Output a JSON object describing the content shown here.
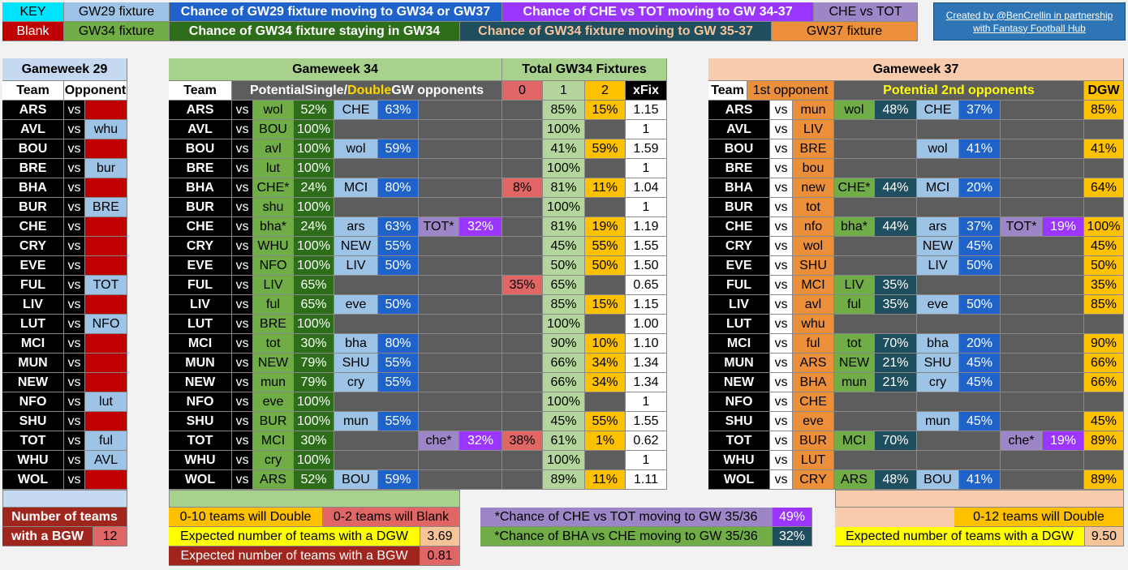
{
  "key": {
    "k1": "KEY",
    "k2": "GW29 fixture",
    "k3": "Chance of GW29 fixture moving to GW34 or GW37",
    "k4": "Chance of CHE vs TOT moving to GW 34-37",
    "k5": "CHE vs TOT",
    "k6": "Blank",
    "k7": "GW34 fixture",
    "k8": "Chance of GW34 fixture staying in GW34",
    "k9": "Chance of GW34 fixture moving to GW 35-37",
    "k10": "GW37 fixture",
    "credit": "Created by @BenCrellin in partnership with Fantasy Football Hub"
  },
  "gw29": {
    "title": "Gameweek 29",
    "team_h": "Team",
    "opp_h": "Opponent",
    "vs": "vs",
    "rows": [
      [
        "ARS",
        ""
      ],
      [
        "AVL",
        "whu"
      ],
      [
        "BOU",
        ""
      ],
      [
        "BRE",
        "bur"
      ],
      [
        "BHA",
        ""
      ],
      [
        "BUR",
        "BRE"
      ],
      [
        "CHE",
        ""
      ],
      [
        "CRY",
        ""
      ],
      [
        "EVE",
        ""
      ],
      [
        "FUL",
        "TOT"
      ],
      [
        "LIV",
        ""
      ],
      [
        "LUT",
        "NFO"
      ],
      [
        "MCI",
        ""
      ],
      [
        "MUN",
        ""
      ],
      [
        "NEW",
        ""
      ],
      [
        "NFO",
        "lut"
      ],
      [
        "SHU",
        ""
      ],
      [
        "TOT",
        "ful"
      ],
      [
        "WHU",
        "AVL"
      ],
      [
        "WOL",
        ""
      ]
    ],
    "bgw_label1": "Number of teams",
    "bgw_label2": "with a BGW",
    "bgw_value": "12"
  },
  "gw34": {
    "title": "Gameweek 34",
    "team_h": "Team",
    "pot_pre": "Potential ",
    "pot_single": "Single",
    "pot_slash": "/",
    "pot_double": "Double",
    "pot_post": " GW opponents",
    "rows": [
      [
        "ARS",
        "wol",
        "52%",
        "CHE",
        "63%",
        "",
        ""
      ],
      [
        "AVL",
        "BOU",
        "100%",
        "",
        "",
        "",
        ""
      ],
      [
        "BOU",
        "avl",
        "100%",
        "wol",
        "59%",
        "",
        ""
      ],
      [
        "BRE",
        "lut",
        "100%",
        "",
        "",
        "",
        ""
      ],
      [
        "BHA",
        "CHE*",
        "24%",
        "MCI",
        "80%",
        "",
        ""
      ],
      [
        "BUR",
        "shu",
        "100%",
        "",
        "",
        "",
        ""
      ],
      [
        "CHE",
        "bha*",
        "24%",
        "ars",
        "63%",
        "TOT*",
        "32%"
      ],
      [
        "CRY",
        "WHU",
        "100%",
        "NEW",
        "55%",
        "",
        ""
      ],
      [
        "EVE",
        "NFO",
        "100%",
        "LIV",
        "50%",
        "",
        ""
      ],
      [
        "FUL",
        "LIV",
        "65%",
        "",
        "",
        "",
        ""
      ],
      [
        "LIV",
        "ful",
        "65%",
        "eve",
        "50%",
        "",
        ""
      ],
      [
        "LUT",
        "BRE",
        "100%",
        "",
        "",
        "",
        ""
      ],
      [
        "MCI",
        "tot",
        "30%",
        "bha",
        "80%",
        "",
        ""
      ],
      [
        "MUN",
        "NEW",
        "79%",
        "SHU",
        "55%",
        "",
        ""
      ],
      [
        "NEW",
        "mun",
        "79%",
        "cry",
        "55%",
        "",
        ""
      ],
      [
        "NFO",
        "eve",
        "100%",
        "",
        "",
        "",
        ""
      ],
      [
        "SHU",
        "BUR",
        "100%",
        "mun",
        "55%",
        "",
        ""
      ],
      [
        "TOT",
        "MCI",
        "30%",
        "",
        "",
        "che*",
        "32%"
      ],
      [
        "WHU",
        "cry",
        "100%",
        "",
        "",
        "",
        ""
      ],
      [
        "WOL",
        "ARS",
        "52%",
        "BOU",
        "59%",
        "",
        ""
      ]
    ]
  },
  "total": {
    "title": "Total GW34 Fixtures",
    "h0": "0",
    "h1": "1",
    "h2": "2",
    "hx": "xFix",
    "rows": [
      [
        "",
        "85%",
        "15%",
        "1.15"
      ],
      [
        "",
        "100%",
        "",
        "1"
      ],
      [
        "",
        "41%",
        "59%",
        "1.59"
      ],
      [
        "",
        "100%",
        "",
        "1"
      ],
      [
        "8%",
        "81%",
        "11%",
        "1.04"
      ],
      [
        "",
        "100%",
        "",
        "1"
      ],
      [
        "",
        "81%",
        "19%",
        "1.19"
      ],
      [
        "",
        "45%",
        "55%",
        "1.55"
      ],
      [
        "",
        "50%",
        "50%",
        "1.50"
      ],
      [
        "35%",
        "65%",
        "",
        "0.65"
      ],
      [
        "",
        "85%",
        "15%",
        "1.15"
      ],
      [
        "",
        "100%",
        "",
        "1.00"
      ],
      [
        "",
        "90%",
        "10%",
        "1.10"
      ],
      [
        "",
        "66%",
        "34%",
        "1.34"
      ],
      [
        "",
        "66%",
        "34%",
        "1.34"
      ],
      [
        "",
        "100%",
        "",
        "1"
      ],
      [
        "",
        "45%",
        "55%",
        "1.55"
      ],
      [
        "38%",
        "61%",
        "1%",
        "0.62"
      ],
      [
        "",
        "100%",
        "",
        "1"
      ],
      [
        "",
        "89%",
        "11%",
        "1.11"
      ]
    ]
  },
  "gw37": {
    "title": "Gameweek 37",
    "team_h": "Team",
    "first_h": "1st opponent",
    "second_h": "Potential 2nd opponents",
    "dgw_h": "DGW",
    "rows": [
      [
        "ARS",
        "mun",
        "wol",
        "48%",
        "CHE",
        "37%",
        "",
        "",
        "85%"
      ],
      [
        "AVL",
        "LIV",
        "",
        "",
        "",
        "",
        "",
        "",
        ""
      ],
      [
        "BOU",
        "BRE",
        "",
        "",
        "wol",
        "41%",
        "",
        "",
        "41%"
      ],
      [
        "BRE",
        "bou",
        "",
        "",
        "",
        "",
        "",
        "",
        ""
      ],
      [
        "BHA",
        "new",
        "CHE*",
        "44%",
        "MCI",
        "20%",
        "",
        "",
        "64%"
      ],
      [
        "BUR",
        "tot",
        "",
        "",
        "",
        "",
        "",
        "",
        ""
      ],
      [
        "CHE",
        "nfo",
        "bha*",
        "44%",
        "ars",
        "37%",
        "TOT*",
        "19%",
        "100%"
      ],
      [
        "CRY",
        "wol",
        "",
        "",
        "NEW",
        "45%",
        "",
        "",
        "45%"
      ],
      [
        "EVE",
        "SHU",
        "",
        "",
        "LIV",
        "50%",
        "",
        "",
        "50%"
      ],
      [
        "FUL",
        "MCI",
        "LIV",
        "35%",
        "",
        "",
        "",
        "",
        "35%"
      ],
      [
        "LIV",
        "avl",
        "ful",
        "35%",
        "eve",
        "50%",
        "",
        "",
        "85%"
      ],
      [
        "LUT",
        "whu",
        "",
        "",
        "",
        "",
        "",
        "",
        ""
      ],
      [
        "MCI",
        "ful",
        "tot",
        "70%",
        "bha",
        "20%",
        "",
        "",
        "90%"
      ],
      [
        "MUN",
        "ARS",
        "NEW",
        "21%",
        "SHU",
        "45%",
        "",
        "",
        "66%"
      ],
      [
        "NEW",
        "BHA",
        "mun",
        "21%",
        "cry",
        "45%",
        "",
        "",
        "66%"
      ],
      [
        "NFO",
        "CHE",
        "",
        "",
        "",
        "",
        "",
        "",
        ""
      ],
      [
        "SHU",
        "eve",
        "",
        "",
        "mun",
        "45%",
        "",
        "",
        "45%"
      ],
      [
        "TOT",
        "BUR",
        "MCI",
        "70%",
        "",
        "",
        "che*",
        "19%",
        "89%"
      ],
      [
        "WHU",
        "LUT",
        "",
        "",
        "",
        "",
        "",
        "",
        ""
      ],
      [
        "WOL",
        "CRY",
        "ARS",
        "48%",
        "BOU",
        "41%",
        "",
        "",
        "89%"
      ]
    ]
  },
  "summary34": {
    "double": "0-10 teams will Double",
    "blank": "0-2 teams will Blank",
    "exp_dgw": "Expected number of teams with a DGW",
    "exp_dgw_v": "3.69",
    "exp_bgw": "Expected number of teams with a BGW",
    "exp_bgw_v": "0.81"
  },
  "notes": {
    "chetot": "*Chance of CHE vs TOT moving to GW 35/36",
    "chetot_v": "49%",
    "bhache": "*Chance of BHA vs CHE moving to GW 35/36",
    "bhache_v": "32%"
  },
  "summary37": {
    "double": "0-12 teams will Double",
    "exp_dgw": "Expected number of teams with a DGW",
    "exp_dgw_v": "9.50"
  }
}
